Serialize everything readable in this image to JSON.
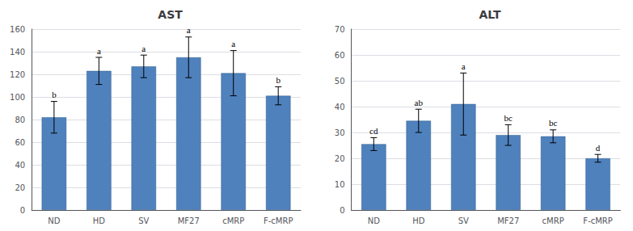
{
  "chart_data": [
    {
      "type": "bar",
      "title": "AST",
      "categories": [
        "ND",
        "HD",
        "SV",
        "MF27",
        "cMRP",
        "F-cMRP"
      ],
      "values": [
        82,
        123,
        127,
        135,
        121,
        101
      ],
      "errors": [
        14,
        12,
        10,
        18,
        20,
        8
      ],
      "annotations": [
        "b",
        "a",
        "a",
        "a",
        "a",
        "b"
      ],
      "color": "#4f81bd",
      "ylim": [
        0,
        160
      ],
      "yticks": [
        0,
        20,
        40,
        60,
        80,
        100,
        120,
        140,
        160
      ],
      "grid": true
    },
    {
      "type": "bar",
      "title": "ALT",
      "categories": [
        "ND",
        "HD",
        "SV",
        "MF27",
        "cMRP",
        "F-cMRP"
      ],
      "values": [
        25.5,
        34.5,
        41,
        29,
        28.5,
        20
      ],
      "errors": [
        2.5,
        4.5,
        12,
        4,
        2.5,
        1.5
      ],
      "annotations": [
        "cd",
        "ab",
        "a",
        "bc",
        "bc",
        "d"
      ],
      "color": "#4f81bd",
      "ylim": [
        0,
        70
      ],
      "yticks": [
        0,
        10,
        20,
        30,
        40,
        50,
        60,
        70
      ],
      "grid": true
    }
  ]
}
